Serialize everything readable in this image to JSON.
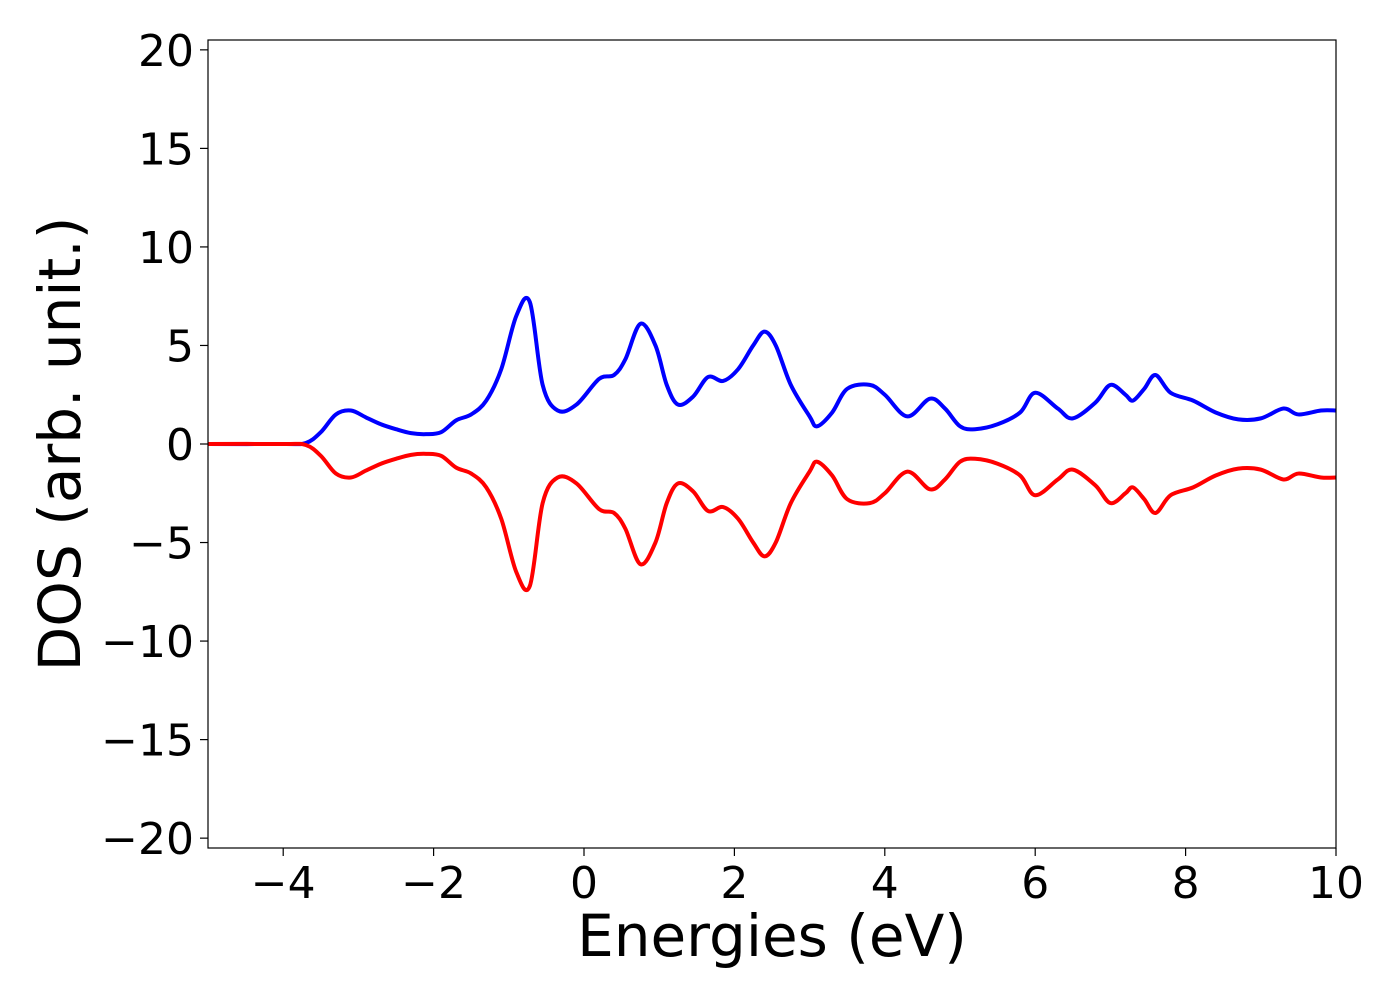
{
  "chart_data": {
    "type": "line",
    "title": "",
    "xlabel": "Energies (eV)",
    "ylabel": "DOS (arb. unit.)",
    "xlim": [
      -5,
      10
    ],
    "ylim": [
      -20.5,
      20.5
    ],
    "xticks": [
      -4,
      -2,
      0,
      2,
      4,
      6,
      8,
      10
    ],
    "yticks": [
      -20,
      -15,
      -10,
      -5,
      0,
      5,
      10,
      15,
      20
    ],
    "xtick_labels": [
      "−4",
      "−2",
      "0",
      "2",
      "4",
      "6",
      "8",
      "10"
    ],
    "ytick_labels": [
      "−20",
      "−15",
      "−10",
      "−5",
      "0",
      "5",
      "10",
      "15",
      "20"
    ],
    "grid": false,
    "legend": "none",
    "series": [
      {
        "color": "#0000ff",
        "x": [
          -5.0,
          -4.0,
          -3.7,
          -3.5,
          -3.3,
          -3.1,
          -2.9,
          -2.7,
          -2.5,
          -2.3,
          -2.1,
          -1.9,
          -1.7,
          -1.5,
          -1.3,
          -1.1,
          -0.9,
          -0.72,
          -0.55,
          -0.35,
          -0.1,
          0.2,
          0.4,
          0.55,
          0.75,
          0.95,
          1.1,
          1.25,
          1.45,
          1.65,
          1.85,
          2.05,
          2.25,
          2.4,
          2.55,
          2.75,
          3.0,
          3.1,
          3.3,
          3.5,
          3.8,
          4.0,
          4.3,
          4.6,
          4.8,
          5.0,
          5.2,
          5.5,
          5.8,
          6.0,
          6.3,
          6.5,
          6.8,
          7.0,
          7.2,
          7.3,
          7.45,
          7.6,
          7.8,
          8.1,
          8.4,
          8.7,
          9.0,
          9.3,
          9.5,
          9.8,
          10.0
        ],
        "y": [
          0.0,
          0.0,
          0.05,
          0.6,
          1.5,
          1.7,
          1.35,
          1.0,
          0.75,
          0.55,
          0.5,
          0.6,
          1.2,
          1.5,
          2.2,
          3.8,
          6.5,
          7.2,
          3.0,
          1.7,
          2.0,
          3.3,
          3.5,
          4.3,
          6.1,
          5.0,
          3.0,
          2.0,
          2.4,
          3.4,
          3.2,
          3.8,
          5.0,
          5.7,
          5.0,
          3.0,
          1.4,
          0.9,
          1.6,
          2.8,
          3.0,
          2.5,
          1.4,
          2.3,
          1.8,
          0.9,
          0.75,
          1.0,
          1.6,
          2.6,
          1.8,
          1.3,
          2.1,
          3.0,
          2.5,
          2.2,
          2.8,
          3.5,
          2.6,
          2.2,
          1.6,
          1.25,
          1.3,
          1.8,
          1.5,
          1.7,
          1.7
        ]
      },
      {
        "color": "#ff0000",
        "x": [
          -5.0,
          -4.0,
          -3.7,
          -3.5,
          -3.3,
          -3.1,
          -2.9,
          -2.7,
          -2.5,
          -2.3,
          -2.1,
          -1.9,
          -1.7,
          -1.5,
          -1.3,
          -1.1,
          -0.9,
          -0.72,
          -0.55,
          -0.35,
          -0.1,
          0.2,
          0.4,
          0.55,
          0.75,
          0.95,
          1.1,
          1.25,
          1.45,
          1.65,
          1.85,
          2.05,
          2.25,
          2.4,
          2.55,
          2.75,
          3.0,
          3.1,
          3.3,
          3.5,
          3.8,
          4.0,
          4.3,
          4.6,
          4.8,
          5.0,
          5.2,
          5.5,
          5.8,
          6.0,
          6.3,
          6.5,
          6.8,
          7.0,
          7.2,
          7.3,
          7.45,
          7.6,
          7.8,
          8.1,
          8.4,
          8.7,
          9.0,
          9.3,
          9.5,
          9.8,
          10.0
        ],
        "y": [
          0.0,
          0.0,
          -0.05,
          -0.6,
          -1.5,
          -1.7,
          -1.35,
          -1.0,
          -0.75,
          -0.55,
          -0.5,
          -0.6,
          -1.2,
          -1.5,
          -2.2,
          -3.8,
          -6.5,
          -7.2,
          -3.0,
          -1.7,
          -2.0,
          -3.3,
          -3.5,
          -4.3,
          -6.1,
          -5.0,
          -3.0,
          -2.0,
          -2.4,
          -3.4,
          -3.2,
          -3.8,
          -5.0,
          -5.7,
          -5.0,
          -3.0,
          -1.4,
          -0.9,
          -1.6,
          -2.8,
          -3.0,
          -2.5,
          -1.4,
          -2.3,
          -1.8,
          -0.9,
          -0.75,
          -1.0,
          -1.6,
          -2.6,
          -1.8,
          -1.3,
          -2.1,
          -3.0,
          -2.5,
          -2.2,
          -2.8,
          -3.5,
          -2.6,
          -2.2,
          -1.6,
          -1.25,
          -1.3,
          -1.8,
          -1.5,
          -1.7,
          -1.7
        ]
      }
    ]
  }
}
